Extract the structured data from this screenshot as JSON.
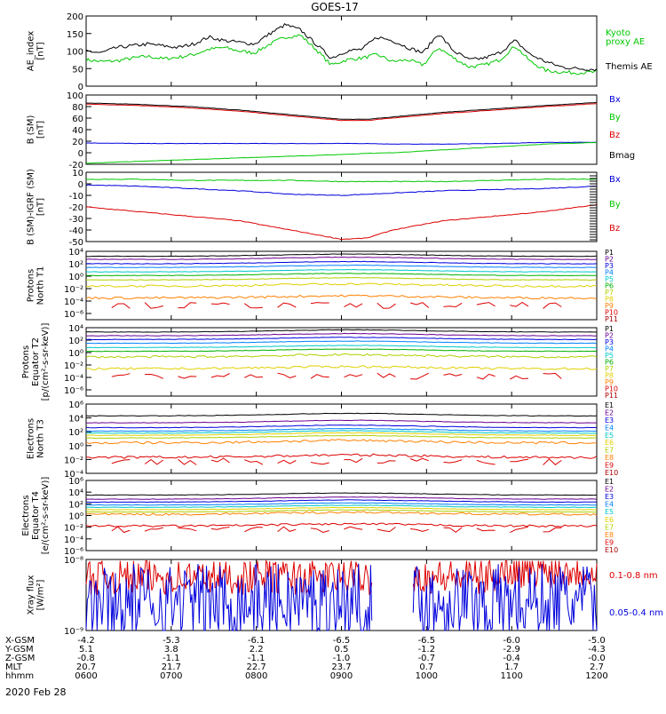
{
  "title": "GOES-17",
  "date_label": "2020 Feb 28",
  "colors": {
    "axis": "#000000",
    "black": "#000000",
    "green": "#00c800",
    "blue": "#0000dd",
    "red": "#dd0000"
  },
  "chart_data": [
    {
      "id": "ae",
      "type": "line",
      "ylabel": [
        "AE_index",
        "[nT]"
      ],
      "ylim": [
        0,
        200
      ],
      "yticks": [
        "0",
        "50",
        "100",
        "150",
        "200"
      ],
      "x": [
        0,
        0.03,
        0.06,
        0.09,
        0.12,
        0.15,
        0.18,
        0.21,
        0.24,
        0.27,
        0.3,
        0.33,
        0.36,
        0.39,
        0.42,
        0.45,
        0.48,
        0.51,
        0.54,
        0.57,
        0.6,
        0.63,
        0.66,
        0.69,
        0.72,
        0.75,
        0.78,
        0.81,
        0.84,
        0.87,
        0.9,
        0.93,
        0.96,
        1.0
      ],
      "series": [
        {
          "name": "Kyoto proxy AE",
          "label_lines": [
            "Kyoto",
            "proxy AE"
          ],
          "color": "#00c800",
          "values": [
            75,
            70,
            72,
            80,
            85,
            78,
            82,
            90,
            105,
            110,
            100,
            95,
            120,
            140,
            145,
            105,
            60,
            75,
            80,
            90,
            70,
            75,
            60,
            110,
            80,
            55,
            60,
            75,
            115,
            70,
            45,
            40,
            38,
            40
          ]
        },
        {
          "name": "Themis AE",
          "label_lines": [
            "Themis AE"
          ],
          "color": "#000000",
          "values": [
            100,
            95,
            110,
            115,
            120,
            115,
            110,
            120,
            140,
            130,
            125,
            120,
            150,
            175,
            160,
            120,
            80,
            100,
            105,
            140,
            130,
            110,
            95,
            150,
            100,
            75,
            80,
            95,
            130,
            90,
            70,
            55,
            50,
            48
          ]
        }
      ]
    },
    {
      "id": "bsm",
      "type": "line",
      "ylabel": [
        "B (SM)",
        "[nT]"
      ],
      "ylim": [
        -20,
        100
      ],
      "yticks": [
        "-20",
        "0",
        "20",
        "40",
        "60",
        "80",
        "100"
      ],
      "x": [
        0,
        0.1,
        0.2,
        0.3,
        0.4,
        0.5,
        0.55,
        0.6,
        0.7,
        0.8,
        0.9,
        1.0
      ],
      "series": [
        {
          "name": "Bx",
          "color": "#0000dd",
          "values": [
            17,
            16,
            16,
            16,
            16,
            16,
            16,
            15,
            15,
            16,
            18,
            18
          ]
        },
        {
          "name": "By",
          "color": "#00c800",
          "values": [
            -18,
            -15,
            -12,
            -9,
            -6,
            -3,
            -1,
            0,
            5,
            10,
            15,
            18
          ]
        },
        {
          "name": "Bz",
          "color": "#dd0000",
          "values": [
            84,
            82,
            78,
            72,
            64,
            56,
            56,
            60,
            68,
            74,
            80,
            85
          ]
        },
        {
          "name": "Bmag",
          "color": "#000000",
          "values": [
            86,
            84,
            80,
            74,
            66,
            58,
            58,
            62,
            70,
            76,
            82,
            87
          ]
        }
      ]
    },
    {
      "id": "bigrf",
      "type": "line",
      "ylabel": [
        "B (SM)-IGRF (SM)",
        "[nT]"
      ],
      "ylim": [
        -50,
        10
      ],
      "yticks": [
        "-50",
        "-40",
        "-30",
        "-20",
        "-10",
        "0",
        "10"
      ],
      "x": [
        0,
        0.1,
        0.2,
        0.3,
        0.4,
        0.5,
        0.55,
        0.6,
        0.7,
        0.8,
        0.9,
        1.0
      ],
      "series": [
        {
          "name": "Bx",
          "color": "#0000dd",
          "values": [
            -1,
            -2,
            -4,
            -6,
            -9,
            -10,
            -9,
            -8,
            -6,
            -5,
            -4,
            -2
          ]
        },
        {
          "name": "By",
          "color": "#00c800",
          "values": [
            4,
            4,
            3,
            3,
            3,
            2,
            2,
            2,
            2,
            3,
            4,
            4
          ]
        },
        {
          "name": "Bz",
          "color": "#dd0000",
          "values": [
            -20,
            -24,
            -28,
            -32,
            -40,
            -48,
            -47,
            -40,
            -32,
            -28,
            -24,
            -18
          ]
        }
      ]
    },
    {
      "id": "pn",
      "type": "line",
      "ylabel": [
        "Protons",
        "North T1"
      ],
      "ylim": [
        -7,
        4
      ],
      "yticks": [
        "10⁻⁶",
        "10⁻⁴",
        "10⁻²",
        "10⁰",
        "10²",
        "10⁴"
      ],
      "ytick_values": [
        -6,
        -4,
        -2,
        0,
        2,
        4
      ],
      "legend": [
        {
          "name": "P1",
          "color": "#000000"
        },
        {
          "name": "P2",
          "color": "#6a0090"
        },
        {
          "name": "P3",
          "color": "#0000dd"
        },
        {
          "name": "P4",
          "color": "#0080ff"
        },
        {
          "name": "P5",
          "color": "#00c8c8"
        },
        {
          "name": "P6",
          "color": "#00b000"
        },
        {
          "name": "P7",
          "color": "#b0d000"
        },
        {
          "name": "P8",
          "color": "#e0d000"
        },
        {
          "name": "P9",
          "color": "#ff8000"
        },
        {
          "name": "P10",
          "color": "#dd0000"
        },
        {
          "name": "P11",
          "color": "#aa0000"
        }
      ],
      "levels": [
        3.2,
        2.7,
        2.0,
        1.4,
        0.7,
        0.1,
        -0.6,
        -1.6,
        -3.5
      ]
    },
    {
      "id": "pe",
      "type": "line",
      "ylabel": [
        "Protons",
        "Equator T2",
        "[p/(cm²-s-sr-keV)]"
      ],
      "ylim": [
        -7,
        4
      ],
      "yticks": [
        "10⁻⁶",
        "10⁻⁴",
        "10⁻²",
        "10⁰",
        "10²",
        "10⁴"
      ],
      "ytick_values": [
        -6,
        -4,
        -2,
        0,
        2,
        4
      ],
      "legend": [
        {
          "name": "P1",
          "color": "#000000"
        },
        {
          "name": "P2",
          "color": "#6a0090"
        },
        {
          "name": "P3",
          "color": "#0000dd"
        },
        {
          "name": "P4",
          "color": "#0080ff"
        },
        {
          "name": "P5",
          "color": "#00c8c8"
        },
        {
          "name": "P6",
          "color": "#00b000"
        },
        {
          "name": "P7",
          "color": "#b0d000"
        },
        {
          "name": "P8",
          "color": "#e0d000"
        },
        {
          "name": "P9",
          "color": "#ff8000"
        },
        {
          "name": "P10",
          "color": "#dd0000"
        },
        {
          "name": "P11",
          "color": "#aa0000"
        }
      ],
      "levels": [
        3.3,
        2.7,
        2.1,
        1.5,
        0.8,
        0.2,
        -0.7,
        -2.6
      ]
    },
    {
      "id": "en",
      "type": "line",
      "ylabel": [
        "Electrons",
        "North T3"
      ],
      "ylim": [
        -4,
        6
      ],
      "yticks": [
        "10⁻⁴",
        "10⁻²",
        "10⁰",
        "10²",
        "10⁴",
        "10⁶"
      ],
      "ytick_values": [
        -4,
        -2,
        0,
        2,
        4,
        6
      ],
      "legend": [
        {
          "name": "E1",
          "color": "#000000"
        },
        {
          "name": "E2",
          "color": "#6a0090"
        },
        {
          "name": "E3",
          "color": "#0000dd"
        },
        {
          "name": "E4",
          "color": "#0080ff"
        },
        {
          "name": "E5",
          "color": "#00c8c8"
        },
        {
          "name": "E6",
          "color": "#e0d000"
        },
        {
          "name": "E7",
          "color": "#b0d000"
        },
        {
          "name": "E8",
          "color": "#ff8000"
        },
        {
          "name": "E9",
          "color": "#dd0000"
        },
        {
          "name": "E10",
          "color": "#aa0000"
        }
      ],
      "levels": [
        4.3,
        3.3,
        2.6,
        2.1,
        1.8,
        1.5,
        1.1,
        0.4,
        -1.7
      ]
    },
    {
      "id": "ee",
      "type": "line",
      "ylabel": [
        "Electrons",
        "Equator T4",
        "[e/(cm²-s-sr-keV)]"
      ],
      "ylim": [
        -6,
        6
      ],
      "yticks": [
        "10⁻⁶",
        "10⁻⁴",
        "10⁻²",
        "10⁰",
        "10²",
        "10⁴",
        "10⁶"
      ],
      "ytick_values": [
        -6,
        -4,
        -2,
        0,
        2,
        4,
        6
      ],
      "legend": [
        {
          "name": "E1",
          "color": "#000000"
        },
        {
          "name": "E2",
          "color": "#6a0090"
        },
        {
          "name": "E3",
          "color": "#0000dd"
        },
        {
          "name": "E4",
          "color": "#0080ff"
        },
        {
          "name": "E5",
          "color": "#00c8c8"
        },
        {
          "name": "E6",
          "color": "#e0d000"
        },
        {
          "name": "E7",
          "color": "#b0d000"
        },
        {
          "name": "E8",
          "color": "#ff8000"
        },
        {
          "name": "E9",
          "color": "#dd0000"
        },
        {
          "name": "E10",
          "color": "#aa0000"
        }
      ],
      "levels": [
        3.5,
        2.8,
        2.3,
        1.8,
        1.4,
        1.0,
        0.6,
        0.2,
        -1.8
      ]
    },
    {
      "id": "xray",
      "type": "line",
      "ylabel": [
        "Xray flux",
        "[W/m²]"
      ],
      "ylim": [
        -9,
        -8
      ],
      "yticks": [
        "10⁻⁹",
        "10⁻⁸"
      ],
      "ytick_values": [
        -9,
        -8
      ],
      "series": [
        {
          "name": "0.1-0.8 nm",
          "color": "#dd0000"
        },
        {
          "name": "0.05-0.4 nm",
          "color": "#0000dd"
        }
      ],
      "gap": [
        0.56,
        0.64
      ]
    }
  ],
  "x_axis": {
    "rows": [
      "X-GSM",
      "Y-GSM",
      "Z-GSM",
      "MLT",
      "hhmm"
    ],
    "columns": [
      [
        "-4.2",
        "5.1",
        "-0.8",
        "20.7",
        "0600"
      ],
      [
        "-5.3",
        "3.8",
        "-1.1",
        "21.7",
        "0700"
      ],
      [
        "-6.1",
        "2.2",
        "-1.1",
        "22.7",
        "0800"
      ],
      [
        "-6.5",
        "0.5",
        "-1.0",
        "23.7",
        "0900"
      ],
      [
        "-6.5",
        "-1.2",
        "-0.7",
        "0.7",
        "1000"
      ],
      [
        "-6.0",
        "-2.9",
        "-0.4",
        "1.7",
        "1100"
      ],
      [
        "-5.0",
        "-4.3",
        "-0.0",
        "2.7",
        "1200"
      ]
    ]
  }
}
